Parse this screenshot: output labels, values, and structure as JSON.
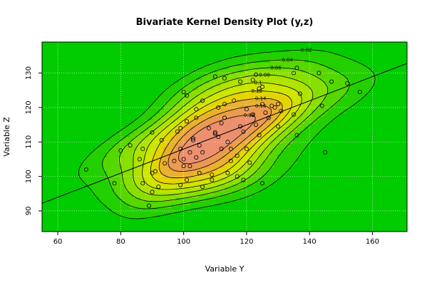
{
  "chart_data": {
    "type": "scatter",
    "title": "Bivariate Kernel Density Plot (y,z)",
    "xlabel": "Variable Y",
    "ylabel": "Variable Z",
    "xlim": [
      55,
      171
    ],
    "ylim": [
      84,
      139
    ],
    "x_ticks": [
      "60",
      "80",
      "100",
      "120",
      "140",
      "160"
    ],
    "y_ticks": [
      "90",
      "100",
      "110",
      "120",
      "130"
    ],
    "grid": true,
    "contour_levels": [
      "0.02",
      "0.04",
      "0.06",
      "0.08",
      "0.1",
      "0.12",
      "0.14",
      "0.16",
      "0.18"
    ],
    "regression_line": {
      "x": [
        55,
        171
      ],
      "y": [
        92.2,
        132.8
      ]
    },
    "colors": {
      "background": "#00cc00",
      "grid": "#ffffff",
      "contour": "#000000",
      "points": "#000000"
    },
    "points": [
      [
        69,
        102
      ],
      [
        78,
        98
      ],
      [
        80,
        107.5
      ],
      [
        83,
        109
      ],
      [
        86,
        105
      ],
      [
        87,
        108
      ],
      [
        87,
        98
      ],
      [
        89,
        91.5
      ],
      [
        90,
        101
      ],
      [
        90,
        95.5
      ],
      [
        90,
        112.8
      ],
      [
        91,
        101.5
      ],
      [
        92,
        97
      ],
      [
        93,
        110.5
      ],
      [
        94,
        103.8
      ],
      [
        97,
        104.5
      ],
      [
        98,
        113
      ],
      [
        99,
        108
      ],
      [
        99,
        114
      ],
      [
        99,
        97.5
      ],
      [
        100,
        124.5
      ],
      [
        100,
        105
      ],
      [
        100,
        103
      ],
      [
        101,
        123.5
      ],
      [
        101,
        116
      ],
      [
        101,
        99
      ],
      [
        102,
        107
      ],
      [
        102,
        103
      ],
      [
        103,
        110.5
      ],
      [
        103,
        111
      ],
      [
        104,
        117
      ],
      [
        104,
        119.5
      ],
      [
        104,
        105.5
      ],
      [
        105,
        109
      ],
      [
        105,
        101
      ],
      [
        106,
        122
      ],
      [
        106,
        107
      ],
      [
        106,
        97
      ],
      [
        108,
        114
      ],
      [
        109,
        100.5
      ],
      [
        109,
        99
      ],
      [
        110,
        129
      ],
      [
        110,
        112.8
      ],
      [
        110,
        112.4
      ],
      [
        111,
        120
      ],
      [
        111,
        111.5
      ],
      [
        112,
        108
      ],
      [
        112,
        115.5
      ],
      [
        113,
        128.5
      ],
      [
        113,
        121
      ],
      [
        113,
        117
      ],
      [
        114,
        110
      ],
      [
        114,
        101
      ],
      [
        115,
        108
      ],
      [
        115,
        104.5
      ],
      [
        116,
        122
      ],
      [
        117,
        106
      ],
      [
        117,
        100
      ],
      [
        118,
        127.5
      ],
      [
        118,
        114.5
      ],
      [
        119,
        99
      ],
      [
        119,
        113
      ],
      [
        120,
        119.5
      ],
      [
        120,
        108
      ],
      [
        121,
        104
      ],
      [
        122,
        128
      ],
      [
        122,
        118
      ],
      [
        123,
        129.5
      ],
      [
        123,
        115
      ],
      [
        124,
        125.5
      ],
      [
        124,
        112
      ],
      [
        125,
        126
      ],
      [
        125,
        121
      ],
      [
        125,
        98
      ],
      [
        126,
        118.5
      ],
      [
        127,
        117
      ],
      [
        128,
        120.5
      ],
      [
        129,
        120
      ],
      [
        130,
        121
      ],
      [
        130,
        114.5
      ],
      [
        131,
        119
      ],
      [
        135,
        130
      ],
      [
        135,
        118
      ],
      [
        136,
        131.5
      ],
      [
        136,
        112
      ],
      [
        137,
        124
      ],
      [
        143,
        130
      ],
      [
        144,
        120.5
      ],
      [
        145,
        107
      ],
      [
        147,
        127.5
      ],
      [
        152,
        127
      ],
      [
        156,
        124.5
      ]
    ]
  }
}
